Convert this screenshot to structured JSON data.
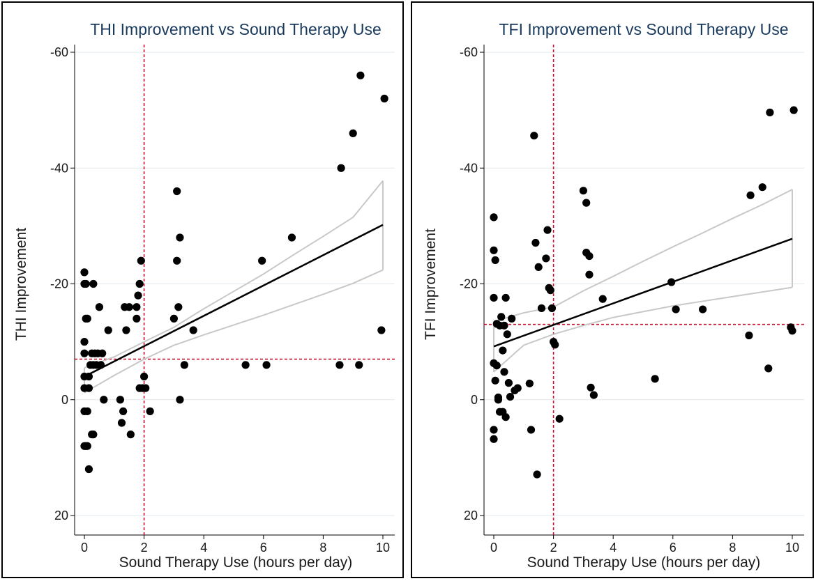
{
  "chart_data": [
    {
      "type": "scatter",
      "title": "THI Improvement vs Sound Therapy Use",
      "xlabel": "Sound Therapy Use (hours per day)",
      "ylabel": "THI Improvement",
      "xlim": [
        0,
        10
      ],
      "ylim": [
        20,
        -60
      ],
      "xticks": [
        0,
        2,
        4,
        6,
        8,
        10
      ],
      "yticks": [
        -60,
        -40,
        -20,
        0,
        20
      ],
      "xtick_labels": [
        "0",
        "2",
        "4",
        "6",
        "8",
        "10"
      ],
      "ytick_labels": [
        "-60",
        "-40",
        "-20",
        "0",
        "20"
      ],
      "ref_x": 2,
      "ref_y": -7,
      "fit": {
        "x": [
          0,
          10
        ],
        "y": [
          -4,
          -30.2
        ]
      },
      "ci_upper": {
        "x": [
          0,
          1,
          2,
          3,
          4,
          5,
          6,
          7,
          8,
          9,
          10
        ],
        "y": [
          -5.5,
          -7.4,
          -10.0,
          -12.5,
          -15.7,
          -18.7,
          -21.7,
          -25.0,
          -28.2,
          -31.5,
          -37.8
        ]
      },
      "ci_lower": {
        "x": [
          0,
          1,
          2,
          3,
          4,
          5,
          6,
          7,
          8,
          9,
          10
        ],
        "y": [
          -1.2,
          -4.2,
          -7.0,
          -9.4,
          -11.2,
          -12.9,
          -14.6,
          -16.4,
          -18.2,
          -20.1,
          -22.4
        ]
      },
      "x": [
        0,
        0,
        0,
        0,
        0,
        0,
        0.05,
        0.05,
        0.1,
        0.15,
        0.0,
        0.0,
        0.1,
        0.15,
        0.2,
        0.25,
        0.3,
        0.3,
        0.35,
        0.4,
        0.45,
        0.5,
        0.55,
        0.6,
        0.65,
        0.3,
        0.25,
        0.05,
        0.1,
        0.15,
        0.8,
        1.2,
        1.3,
        1.4,
        1.5,
        1.55,
        1.25,
        1.35,
        1.75,
        1.8,
        1.85,
        1.9,
        1.75,
        1.85,
        1.95,
        2.0,
        2.05,
        2.2,
        3.0,
        3.1,
        3.1,
        3.15,
        3.2,
        3.2,
        3.35,
        3.65,
        5.4,
        5.95,
        6.1,
        6.95,
        8.55,
        8.6,
        9.0,
        9.2,
        9.25,
        9.95,
        10.05
      ],
      "y": [
        -22,
        -20,
        -10,
        -8,
        -4,
        -2,
        -20,
        -14,
        -14,
        -4,
        2,
        8,
        8,
        12,
        -6,
        -8,
        -20,
        -6,
        -8,
        -6,
        -8,
        -16,
        -6,
        -8,
        0,
        6,
        6,
        8,
        2,
        -2,
        -12,
        0,
        2,
        -12,
        -16,
        6,
        4,
        -16,
        -14,
        -18,
        -20,
        -24,
        -16,
        -2,
        -2,
        -4,
        -2,
        2,
        -14,
        -24,
        -36,
        -16,
        -28,
        0,
        -6,
        -12,
        -6,
        -24,
        -6,
        -28,
        -6,
        -40,
        -46,
        -6,
        -56,
        -12,
        -52
      ]
    },
    {
      "type": "scatter",
      "title": "TFI Improvement vs Sound Therapy Use",
      "xlabel": "Sound Therapy Use (hours per day)",
      "ylabel": "TFI Improvement",
      "xlim": [
        0,
        10
      ],
      "ylim": [
        20,
        -60
      ],
      "xticks": [
        0,
        2,
        4,
        6,
        8,
        10
      ],
      "yticks": [
        -60,
        -40,
        -20,
        0,
        20
      ],
      "xtick_labels": [
        "0",
        "2",
        "4",
        "6",
        "8",
        "10"
      ],
      "ytick_labels": [
        "-60",
        "-40",
        "-20",
        "0",
        "20"
      ],
      "ref_x": 2,
      "ref_y": -13,
      "fit": {
        "x": [
          0,
          10
        ],
        "y": [
          -9.2,
          -27.8
        ]
      },
      "ci_upper": {
        "x": [
          0,
          1,
          2,
          3,
          4,
          5,
          6,
          7,
          8,
          9,
          10
        ],
        "y": [
          -13.5,
          -15.0,
          -16.0,
          -18.8,
          -21.3,
          -23.9,
          -26.4,
          -28.8,
          -31.3,
          -33.7,
          -36.3
        ]
      },
      "ci_lower": {
        "x": [
          0,
          1,
          2,
          3,
          4,
          5,
          6,
          7,
          8,
          9,
          10
        ],
        "y": [
          -4.8,
          -9.4,
          -11.3,
          -12.8,
          -14.2,
          -15.2,
          -16.2,
          -17.0,
          -17.8,
          -18.6,
          -19.4
        ]
      },
      "x": [
        0,
        0,
        0,
        0.05,
        0.1,
        0.15,
        0.2,
        0.25,
        0.3,
        0.35,
        0.4,
        0.45,
        0,
        0.05,
        0.1,
        0.15,
        0.2,
        0.3,
        0.35,
        0.4,
        0.5,
        0.55,
        0.6,
        0.7,
        0.8,
        1.2,
        1.25,
        1.35,
        1.4,
        1.5,
        1.6,
        1.75,
        1.8,
        1.85,
        1.9,
        1.95,
        2.0,
        2.05,
        2.2,
        3.0,
        3.1,
        3.1,
        3.2,
        3.2,
        3.25,
        3.35,
        3.65,
        5.4,
        5.95,
        6.1,
        7.0,
        8.55,
        8.6,
        9.0,
        9.2,
        9.25,
        9.95,
        10.0,
        10.05,
        1.45,
        0.0,
        0.0
      ],
      "y": [
        -31.5,
        -25.8,
        -17.6,
        -24.1,
        -13.1,
        0,
        -12.8,
        -14.3,
        -8.5,
        -4.8,
        -17.6,
        -11.3,
        -6.3,
        -3.3,
        -5.9,
        -0.4,
        2.1,
        2.1,
        -12.8,
        3.0,
        -2.9,
        -0.5,
        -14.0,
        -1.6,
        -2.0,
        -2.8,
        5.2,
        -45.6,
        -27.1,
        -22.9,
        -15.8,
        -24.4,
        -29.3,
        -19.3,
        -18.9,
        -15.8,
        -10.0,
        -9.5,
        3.3,
        -36.1,
        -34.0,
        -25.4,
        -24.8,
        -21.6,
        -2.1,
        -0.8,
        -17.4,
        -3.6,
        -20.3,
        -15.6,
        -15.6,
        -11.1,
        -35.3,
        -36.7,
        -5.4,
        -49.6,
        -12.5,
        -11.9,
        -50.0,
        12.9,
        5.2,
        6.8
      ]
    }
  ]
}
